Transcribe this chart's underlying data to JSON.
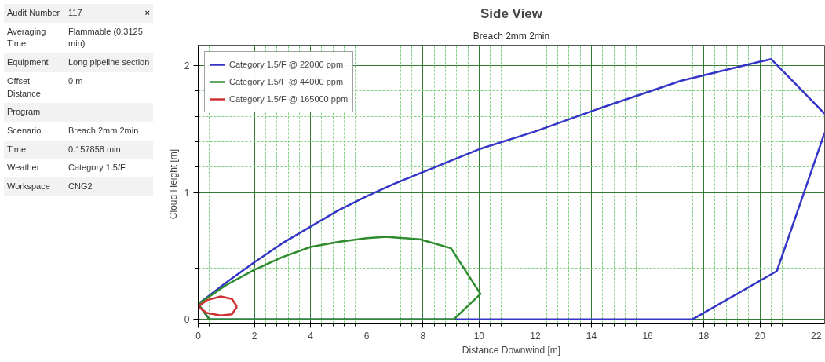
{
  "chart_data": [
    {
      "type": "other",
      "categories": [
        "Audit Number",
        "Averaging Time",
        "Equipment",
        "Offset Distance",
        "Program",
        "Scenario",
        "Time",
        "Weather",
        "Workspace"
      ],
      "value_labels": [
        "117",
        "Flammable (0.3125 min)",
        "Long pipeline section",
        "0 m",
        null,
        "Breach 2mm 2min",
        "0.157858 min",
        "Category 1.5/F",
        "CNG2"
      ],
      "annotations": [
        "×"
      ]
    },
    {
      "type": "line",
      "title": "Side View",
      "subtitle": "Breach 2mm 2min",
      "xlabel": "Distance Downwind [m]",
      "ylabel": "Cloud Height [m]",
      "xlim": [
        0,
        22.3
      ],
      "ylim": [
        -0.03,
        2.16
      ],
      "xticks": [
        0,
        {
          "value": 0.4,
          "label": null
        },
        {
          "value": 0.8,
          "label": null
        },
        {
          "value": 1.2,
          "label": null
        },
        {
          "value": 1.6,
          "label": null
        },
        2,
        {
          "value": 2.4,
          "label": null
        },
        {
          "value": 2.8,
          "label": null
        },
        {
          "value": 3.2,
          "label": null
        },
        {
          "value": 3.6,
          "label": null
        },
        4,
        {
          "value": 4.4,
          "label": null
        },
        {
          "value": 4.8,
          "label": null
        },
        {
          "value": 5.2,
          "label": null
        },
        {
          "value": 5.6,
          "label": null
        },
        6,
        {
          "value": 6.4,
          "label": null
        },
        {
          "value": 6.8,
          "label": null
        },
        {
          "value": 7.2,
          "label": null
        },
        {
          "value": 7.6,
          "label": null
        },
        8,
        {
          "value": 8.4,
          "label": null
        },
        {
          "value": 8.8,
          "label": null
        },
        {
          "value": 9.2,
          "label": null
        },
        {
          "value": 9.6,
          "label": null
        },
        10,
        {
          "value": 10.4,
          "label": null
        },
        {
          "value": 10.8,
          "label": null
        },
        {
          "value": 11.2,
          "label": null
        },
        {
          "value": 11.6,
          "label": null
        },
        12,
        {
          "value": 12.4,
          "label": null
        },
        {
          "value": 12.8,
          "label": null
        },
        {
          "value": 13.2,
          "label": null
        },
        {
          "value": 13.6,
          "label": null
        },
        14,
        {
          "value": 14.4,
          "label": null
        },
        {
          "value": 14.8,
          "label": null
        },
        {
          "value": 15.2,
          "label": null
        },
        {
          "value": 15.6,
          "label": null
        },
        16,
        {
          "value": 16.4,
          "label": null
        },
        {
          "value": 16.8,
          "label": null
        },
        {
          "value": 17.2,
          "label": null
        },
        {
          "value": 17.6,
          "label": null
        },
        18,
        {
          "value": 18.4,
          "label": null
        },
        {
          "value": 18.8,
          "label": null
        },
        {
          "value": 19.2,
          "label": null
        },
        {
          "value": 19.6,
          "label": null
        },
        20,
        {
          "value": 20.4,
          "label": null
        },
        {
          "value": 20.8,
          "label": null
        },
        {
          "value": 21.2,
          "label": null
        },
        {
          "value": 21.6,
          "label": null
        },
        22
      ],
      "yticks": [
        0,
        {
          "value": 0.2,
          "label": null
        },
        {
          "value": 0.4,
          "label": null
        },
        {
          "value": 0.6,
          "label": null
        },
        {
          "value": 0.8,
          "label": null
        },
        1,
        {
          "value": 1.2,
          "label": null
        },
        {
          "value": 1.4,
          "label": null
        },
        {
          "value": 1.6,
          "label": null
        },
        {
          "value": 1.8,
          "label": null
        },
        2
      ],
      "grid": true,
      "legend": "top left",
      "marker": "none",
      "line_style": "solid",
      "series": [
        {
          "name": "Category 1.5/F @ 22000 ppm",
          "color": "#3535c8",
          "x": [
            0,
            1,
            2,
            3,
            4,
            5,
            6,
            7,
            8,
            10,
            12,
            14,
            16,
            17.2,
            20,
            20.4,
            22.3
          ],
          "values": [
            0.12,
            0.29,
            0.45,
            0.6,
            0.73,
            0.86,
            0.97,
            1.07,
            1.16,
            1.34,
            1.48,
            1.64,
            1.79,
            1.88,
            2.03,
            2.05,
            1.62
          ]
        },
        {
          "color": "#3535c8",
          "x": [
            0,
            0.4,
            17.6,
            20.6,
            22.3
          ],
          "values": [
            0.12,
            0,
            0,
            0.38,
            1.47
          ]
        },
        {
          "name": "Category 1.5/F @ 44000 ppm",
          "color": "#2e8b2e",
          "x": [
            0,
            1,
            2,
            3,
            4,
            5,
            6,
            6.7,
            7.9,
            9.0,
            10.05
          ],
          "values": [
            0.12,
            0.27,
            0.39,
            0.49,
            0.57,
            0.61,
            0.64,
            0.65,
            0.63,
            0.56,
            0.2
          ]
        },
        {
          "color": "#2e8b2e",
          "x": [
            0,
            0.4,
            9.1,
            10.05
          ],
          "values": [
            0.12,
            0,
            0,
            0.2
          ]
        },
        {
          "name": "Category 1.5/F @ 165000 ppm",
          "color": "#d03030",
          "x": [
            0,
            0.3,
            0.8,
            1.2,
            1.38
          ],
          "values": [
            0.1,
            0.15,
            0.18,
            0.16,
            0.1
          ]
        },
        {
          "color": "#d03030",
          "x": [
            0,
            0.3,
            0.8,
            1.2,
            1.38
          ],
          "values": [
            0.1,
            0.05,
            0.03,
            0.04,
            0.1
          ]
        }
      ]
    }
  ]
}
